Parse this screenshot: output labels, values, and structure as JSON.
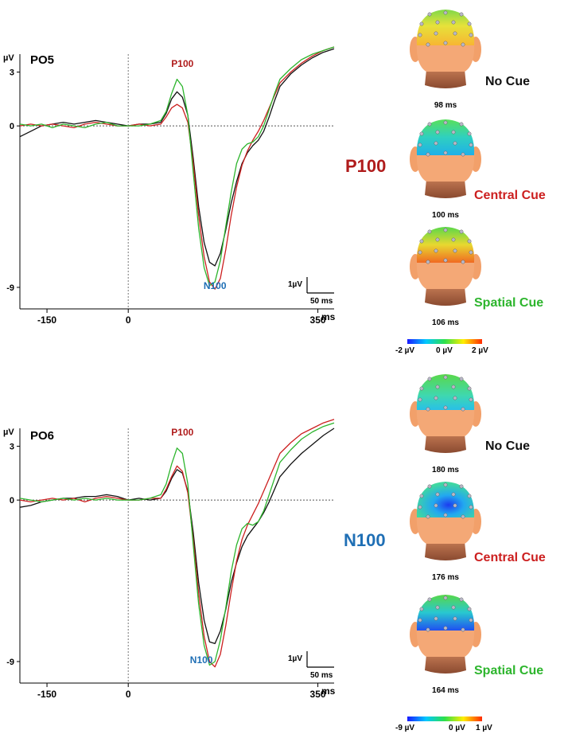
{
  "colors": {
    "no_cue": "#111111",
    "central_cue": "#cc1f1f",
    "spatial_cue": "#2db52d",
    "p100": "#b01c1c",
    "n100": "#1f6fb5",
    "axis": "#000000"
  },
  "chart_data": [
    {
      "type": "line",
      "title": "PO5",
      "ylabel": "µV",
      "xlabel": "ms",
      "xlim": [
        -200,
        380
      ],
      "ylim": [
        -10.2,
        4
      ],
      "x_ticks": [
        {
          "v": -150,
          "label": "-150"
        },
        {
          "v": 0,
          "label": "0"
        },
        {
          "v": 350,
          "label": "350"
        }
      ],
      "y_ticks": [
        {
          "v": 3,
          "label": "3"
        },
        {
          "v": 0,
          "label": "0"
        },
        {
          "v": -9,
          "label": "-9"
        }
      ],
      "peak_labels": [
        {
          "text": "P100",
          "x": 100,
          "y": 3.3,
          "color_key": "p100"
        },
        {
          "text": "N100",
          "x": 160,
          "y": -9.1,
          "color_key": "n100"
        }
      ],
      "scale_bar": {
        "uv_label": "1µV",
        "ms_label": "50 ms"
      },
      "series": [
        {
          "name": "No Cue",
          "color_key": "no_cue",
          "x": [
            -200,
            -180,
            -160,
            -140,
            -120,
            -100,
            -80,
            -60,
            -40,
            -20,
            0,
            20,
            40,
            60,
            70,
            80,
            90,
            100,
            110,
            120,
            130,
            140,
            150,
            160,
            170,
            180,
            190,
            200,
            210,
            220,
            230,
            240,
            250,
            260,
            270,
            280,
            300,
            320,
            340,
            360,
            380
          ],
          "y": [
            -0.6,
            -0.3,
            0.0,
            0.1,
            0.2,
            0.1,
            0.2,
            0.3,
            0.2,
            0.1,
            0.0,
            0.1,
            0.1,
            0.2,
            0.7,
            1.5,
            1.9,
            1.6,
            0.6,
            -1.8,
            -4.5,
            -6.5,
            -7.6,
            -7.8,
            -7.1,
            -5.8,
            -4.3,
            -3.1,
            -2.1,
            -1.5,
            -1.1,
            -0.8,
            -0.3,
            0.5,
            1.4,
            2.2,
            2.9,
            3.4,
            3.8,
            4.1,
            4.3
          ]
        },
        {
          "name": "Central Cue",
          "color_key": "central_cue",
          "x": [
            -200,
            -180,
            -160,
            -140,
            -120,
            -100,
            -80,
            -60,
            -40,
            -20,
            0,
            20,
            40,
            60,
            70,
            80,
            90,
            100,
            110,
            120,
            130,
            140,
            150,
            160,
            170,
            180,
            190,
            200,
            210,
            220,
            230,
            240,
            250,
            260,
            270,
            280,
            300,
            320,
            340,
            360,
            380
          ],
          "y": [
            0.0,
            0.1,
            0.0,
            0.1,
            0.0,
            -0.1,
            0.1,
            0.2,
            0.1,
            0.0,
            0.0,
            0.1,
            0.0,
            0.1,
            0.5,
            1.0,
            1.2,
            1.0,
            0.2,
            -2.1,
            -5.0,
            -7.3,
            -8.7,
            -9.1,
            -8.5,
            -6.9,
            -5.0,
            -3.4,
            -2.2,
            -1.4,
            -0.8,
            -0.3,
            0.3,
            1.0,
            1.7,
            2.4,
            3.0,
            3.5,
            3.9,
            4.2,
            4.4
          ]
        },
        {
          "name": "Spatial Cue",
          "color_key": "spatial_cue",
          "x": [
            -200,
            -180,
            -160,
            -140,
            -120,
            -100,
            -80,
            -60,
            -40,
            -20,
            0,
            20,
            40,
            60,
            70,
            80,
            90,
            100,
            110,
            120,
            130,
            140,
            150,
            160,
            170,
            180,
            190,
            200,
            210,
            220,
            230,
            240,
            250,
            260,
            270,
            280,
            300,
            320,
            340,
            360,
            380
          ],
          "y": [
            0.1,
            0.0,
            0.1,
            -0.1,
            0.1,
            0.0,
            -0.1,
            0.1,
            0.2,
            0.0,
            0.0,
            0.0,
            0.1,
            0.3,
            0.8,
            1.8,
            2.6,
            2.2,
            0.6,
            -2.6,
            -5.7,
            -7.9,
            -8.9,
            -8.7,
            -7.5,
            -5.6,
            -3.7,
            -2.1,
            -1.3,
            -1.0,
            -0.9,
            -0.6,
            0.0,
            0.9,
            1.8,
            2.6,
            3.2,
            3.7,
            4.0,
            4.2,
            4.4
          ]
        }
      ]
    },
    {
      "type": "line",
      "title": "PO6",
      "ylabel": "µV",
      "xlabel": "ms",
      "xlim": [
        -200,
        380
      ],
      "ylim": [
        -10.2,
        4
      ],
      "x_ticks": [
        {
          "v": -150,
          "label": "-150"
        },
        {
          "v": 0,
          "label": "0"
        },
        {
          "v": 350,
          "label": "350"
        }
      ],
      "y_ticks": [
        {
          "v": 3,
          "label": "3"
        },
        {
          "v": 0,
          "label": "0"
        },
        {
          "v": -9,
          "label": "-9"
        }
      ],
      "peak_labels": [
        {
          "text": "P100",
          "x": 100,
          "y": 3.6,
          "color_key": "p100"
        },
        {
          "text": "N100",
          "x": 135,
          "y": -9.1,
          "color_key": "n100"
        }
      ],
      "scale_bar": {
        "uv_label": "1µV",
        "ms_label": "50 ms"
      },
      "series": [
        {
          "name": "No Cue",
          "color_key": "no_cue",
          "x": [
            -200,
            -180,
            -160,
            -140,
            -120,
            -100,
            -80,
            -60,
            -40,
            -20,
            0,
            20,
            40,
            60,
            70,
            80,
            90,
            100,
            110,
            120,
            130,
            140,
            150,
            160,
            170,
            180,
            190,
            200,
            210,
            220,
            230,
            240,
            250,
            260,
            270,
            280,
            300,
            320,
            340,
            360,
            380
          ],
          "y": [
            -0.4,
            -0.3,
            -0.1,
            0.0,
            0.1,
            0.1,
            0.2,
            0.2,
            0.3,
            0.2,
            0.0,
            0.1,
            0.0,
            0.1,
            0.5,
            1.2,
            1.7,
            1.5,
            0.5,
            -1.8,
            -4.6,
            -6.7,
            -7.9,
            -8.0,
            -7.3,
            -6.1,
            -4.6,
            -3.5,
            -2.6,
            -2.0,
            -1.6,
            -1.2,
            -0.7,
            -0.1,
            0.6,
            1.3,
            2.0,
            2.6,
            3.1,
            3.6,
            4.0
          ]
        },
        {
          "name": "Central Cue",
          "color_key": "central_cue",
          "x": [
            -200,
            -180,
            -160,
            -140,
            -120,
            -100,
            -80,
            -60,
            -40,
            -20,
            0,
            20,
            40,
            60,
            70,
            80,
            90,
            100,
            110,
            120,
            130,
            140,
            150,
            160,
            170,
            180,
            190,
            200,
            210,
            220,
            230,
            240,
            250,
            260,
            270,
            280,
            300,
            320,
            340,
            360,
            380
          ],
          "y": [
            0.0,
            -0.1,
            0.0,
            0.1,
            0.0,
            0.1,
            -0.1,
            0.1,
            0.2,
            0.1,
            0.0,
            0.0,
            0.1,
            0.1,
            0.6,
            1.3,
            1.9,
            1.6,
            0.4,
            -2.2,
            -5.2,
            -7.6,
            -9.0,
            -9.3,
            -8.6,
            -7.0,
            -5.1,
            -3.4,
            -2.2,
            -1.4,
            -0.8,
            -0.2,
            0.5,
            1.2,
            1.9,
            2.6,
            3.2,
            3.7,
            4.0,
            4.3,
            4.5
          ]
        },
        {
          "name": "Spatial Cue",
          "color_key": "spatial_cue",
          "x": [
            -200,
            -180,
            -160,
            -140,
            -120,
            -100,
            -80,
            -60,
            -40,
            -20,
            0,
            20,
            40,
            60,
            70,
            80,
            90,
            100,
            110,
            120,
            130,
            140,
            150,
            160,
            170,
            180,
            190,
            200,
            210,
            220,
            230,
            240,
            250,
            260,
            270,
            280,
            300,
            320,
            340,
            360,
            380
          ],
          "y": [
            0.1,
            0.0,
            -0.1,
            0.0,
            0.1,
            0.0,
            0.1,
            0.0,
            0.1,
            0.0,
            0.0,
            0.0,
            0.1,
            0.3,
            0.9,
            2.0,
            2.9,
            2.6,
            0.9,
            -2.5,
            -5.8,
            -8.1,
            -9.2,
            -9.0,
            -7.8,
            -6.0,
            -4.0,
            -2.5,
            -1.6,
            -1.3,
            -1.4,
            -1.2,
            -0.6,
            0.3,
            1.2,
            2.1,
            2.8,
            3.4,
            3.8,
            4.1,
            4.3
          ]
        }
      ]
    }
  ],
  "topomaps": {
    "P100": {
      "title": "P100",
      "maps": [
        {
          "condition": "No Cue",
          "latency": "98 ms",
          "color_key": "no_cue",
          "pattern": "yellow"
        },
        {
          "condition": "Central Cue",
          "latency": "100 ms",
          "color_key": "central_cue",
          "pattern": "cyan"
        },
        {
          "condition": "Spatial Cue",
          "latency": "106 ms",
          "color_key": "spatial_cue",
          "pattern": "warm"
        }
      ],
      "scale": {
        "min_label": "-2 µV",
        "mid_label": "0 µV",
        "max_label": "2 µV"
      }
    },
    "N100": {
      "title": "N100",
      "maps": [
        {
          "condition": "No Cue",
          "latency": "180 ms",
          "color_key": "no_cue",
          "pattern": "light"
        },
        {
          "condition": "Central Cue",
          "latency": "176 ms",
          "color_key": "central_cue",
          "pattern": "blue"
        },
        {
          "condition": "Spatial Cue",
          "latency": "164 ms",
          "color_key": "spatial_cue",
          "pattern": "mixed"
        }
      ],
      "scale": {
        "min_label": "-9 µV",
        "mid_label": "0 µV",
        "max_label": "1 µV"
      }
    }
  }
}
